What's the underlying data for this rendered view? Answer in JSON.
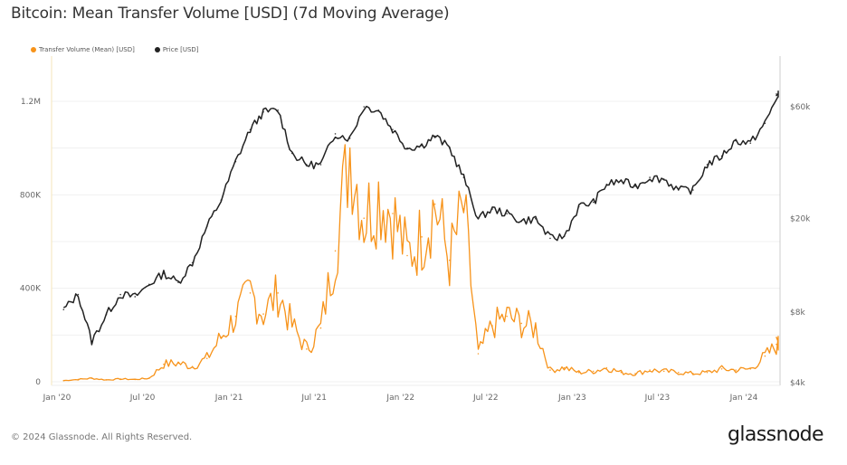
{
  "header": {
    "title": "Bitcoin: Mean Transfer Volume [USD] (7d Moving Average)"
  },
  "footer": {
    "copyright": "© 2024 Glassnode. All Rights Reserved.",
    "brand": "glassnode"
  },
  "colors": {
    "volume": "#f7931a",
    "price": "#222222",
    "grid": "#f0f0f0",
    "left_axis_line": "#f5e6b8",
    "right_axis_line": "#cccccc"
  },
  "chart_data": {
    "type": "line",
    "title": "Bitcoin: Mean Transfer Volume [USD] (7d Moving Average)",
    "xlabel": "",
    "ylabel_left": "Transfer Volume (Mean) [USD]",
    "ylabel_right": "Price [USD]",
    "legend": [
      "Transfer Volume (Mean) [USD]",
      "Price [USD]"
    ],
    "legend_position": "top-left",
    "grid": true,
    "x_ticks": [
      "Jan '20",
      "Jul '20",
      "Jan '21",
      "Jul '21",
      "Jan '22",
      "Jul '22",
      "Jan '23",
      "Jul '23",
      "Jan '24"
    ],
    "y_left_ticks": [
      "0",
      "400K",
      "800K",
      "1.2M"
    ],
    "y_left_tick_values": [
      0,
      400000,
      800000,
      1200000
    ],
    "y_left_range": [
      0,
      1350000
    ],
    "y_right_ticks": [
      "$4k",
      "$8k",
      "$20k",
      "$60k"
    ],
    "y_right_tick_values": [
      4000,
      8000,
      20000,
      60000
    ],
    "y_right_range": [
      4000,
      75000
    ],
    "y_right_scale": "log",
    "x_range": [
      "2020-01-01",
      "2024-04-05"
    ],
    "x": [
      "2020-01",
      "2020-02",
      "2020-03",
      "2020-04",
      "2020-05",
      "2020-06",
      "2020-07",
      "2020-08",
      "2020-09",
      "2020-10",
      "2020-11",
      "2020-12",
      "2021-01",
      "2021-02",
      "2021-03",
      "2021-04",
      "2021-05",
      "2021-06",
      "2021-07",
      "2021-08",
      "2021-09",
      "2021-10",
      "2021-11",
      "2021-12",
      "2022-01",
      "2022-02",
      "2022-03",
      "2022-04",
      "2022-05",
      "2022-06",
      "2022-07",
      "2022-08",
      "2022-09",
      "2022-10",
      "2022-11",
      "2022-12",
      "2023-01",
      "2023-02",
      "2023-03",
      "2023-04",
      "2023-05",
      "2023-06",
      "2023-07",
      "2023-08",
      "2023-09",
      "2023-10",
      "2023-11",
      "2023-12",
      "2024-01",
      "2024-02",
      "2024-03",
      "2024-04"
    ],
    "series": [
      {
        "name": "Transfer Volume (Mean) [USD]",
        "axis": "left",
        "values": [
          5000,
          10000,
          15000,
          8000,
          12000,
          10000,
          15000,
          75000,
          80000,
          65000,
          100000,
          190000,
          280000,
          380000,
          290000,
          380000,
          240000,
          140000,
          230000,
          560000,
          1000000,
          700000,
          800000,
          720000,
          540000,
          620000,
          760000,
          520000,
          740000,
          120000,
          240000,
          280000,
          250000,
          230000,
          50000,
          60000,
          40000,
          45000,
          60000,
          40000,
          35000,
          50000,
          45000,
          40000,
          35000,
          40000,
          55000,
          50000,
          55000,
          110000,
          160000,
          190000
        ]
      },
      {
        "name": "Price [USD]",
        "axis": "right",
        "values": [
          8200,
          9500,
          6000,
          7800,
          9500,
          9300,
          10500,
          11700,
          10700,
          13000,
          18500,
          24000,
          35000,
          48000,
          57000,
          58000,
          38000,
          34000,
          34000,
          46000,
          44000,
          60000,
          58000,
          48000,
          40000,
          41000,
          45000,
          40000,
          30000,
          20000,
          22000,
          21000,
          19500,
          20000,
          16500,
          16800,
          22500,
          23500,
          28000,
          29000,
          27500,
          30000,
          29500,
          26500,
          26500,
          34000,
          37000,
          43000,
          42000,
          51000,
          68000,
          67000
        ]
      }
    ]
  }
}
